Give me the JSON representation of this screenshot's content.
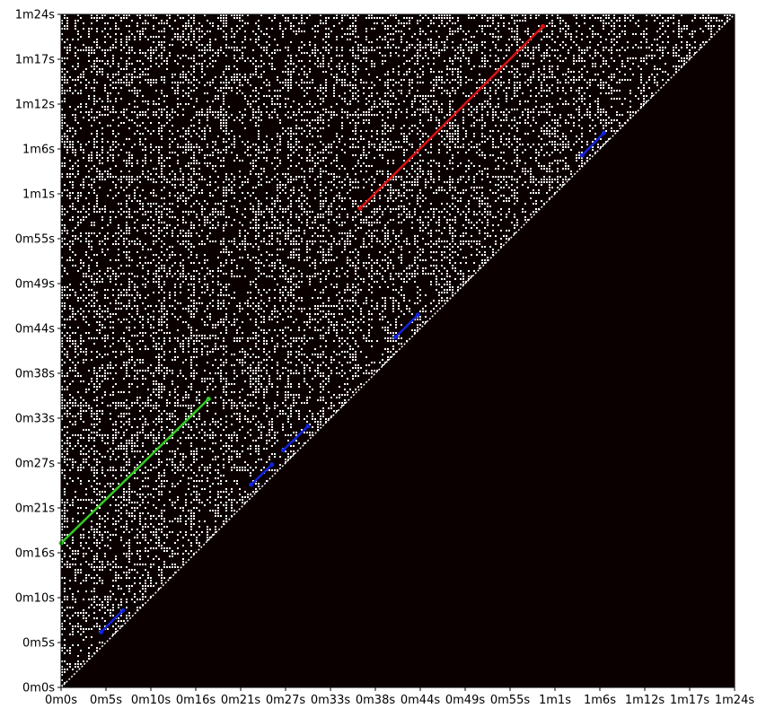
{
  "chart_data": {
    "type": "heatmap",
    "title": "",
    "xlabel": "",
    "ylabel": "",
    "xlim": [
      0,
      84
    ],
    "ylim": [
      0,
      84
    ],
    "x_tick_labels": [
      "0m0s",
      "0m5s",
      "0m10s",
      "0m16s",
      "0m21s",
      "0m27s",
      "0m33s",
      "0m38s",
      "0m44s",
      "0m49s",
      "0m55s",
      "1m1s",
      "1m6s",
      "1m12s",
      "1m17s",
      "1m24s"
    ],
    "y_tick_labels": [
      "0m0s",
      "0m5s",
      "0m10s",
      "0m16s",
      "0m21s",
      "0m27s",
      "0m33s",
      "0m38s",
      "0m44s",
      "0m49s",
      "0m55s",
      "1m1s",
      "1m6s",
      "1m12s",
      "1m17s",
      "1m24s"
    ],
    "matrix": "binary self-similarity (recurrence) matrix, upper-left triangle only",
    "background_color": "#0b0000",
    "highlights": [
      {
        "color": "#33cc22",
        "x": [
          0.0,
          18.4
        ],
        "y": [
          18.0,
          36.0
        ]
      },
      {
        "color": "#dd1111",
        "x": [
          37.3,
          60.1
        ],
        "y": [
          59.8,
          82.5
        ]
      },
      {
        "color": "#1122dd",
        "x": [
          5.0,
          7.7
        ],
        "y": [
          6.9,
          9.6
        ]
      },
      {
        "color": "#1122dd",
        "x": [
          23.7,
          26.3
        ],
        "y": [
          25.3,
          27.8
        ]
      },
      {
        "color": "#1122dd",
        "x": [
          27.7,
          30.8
        ],
        "y": [
          29.6,
          32.6
        ]
      },
      {
        "color": "#1122dd",
        "x": [
          41.7,
          44.5
        ],
        "y": [
          43.7,
          46.5
        ]
      },
      {
        "color": "#1122dd",
        "x": [
          65.0,
          67.7
        ],
        "y": [
          66.4,
          69.2
        ]
      }
    ]
  }
}
